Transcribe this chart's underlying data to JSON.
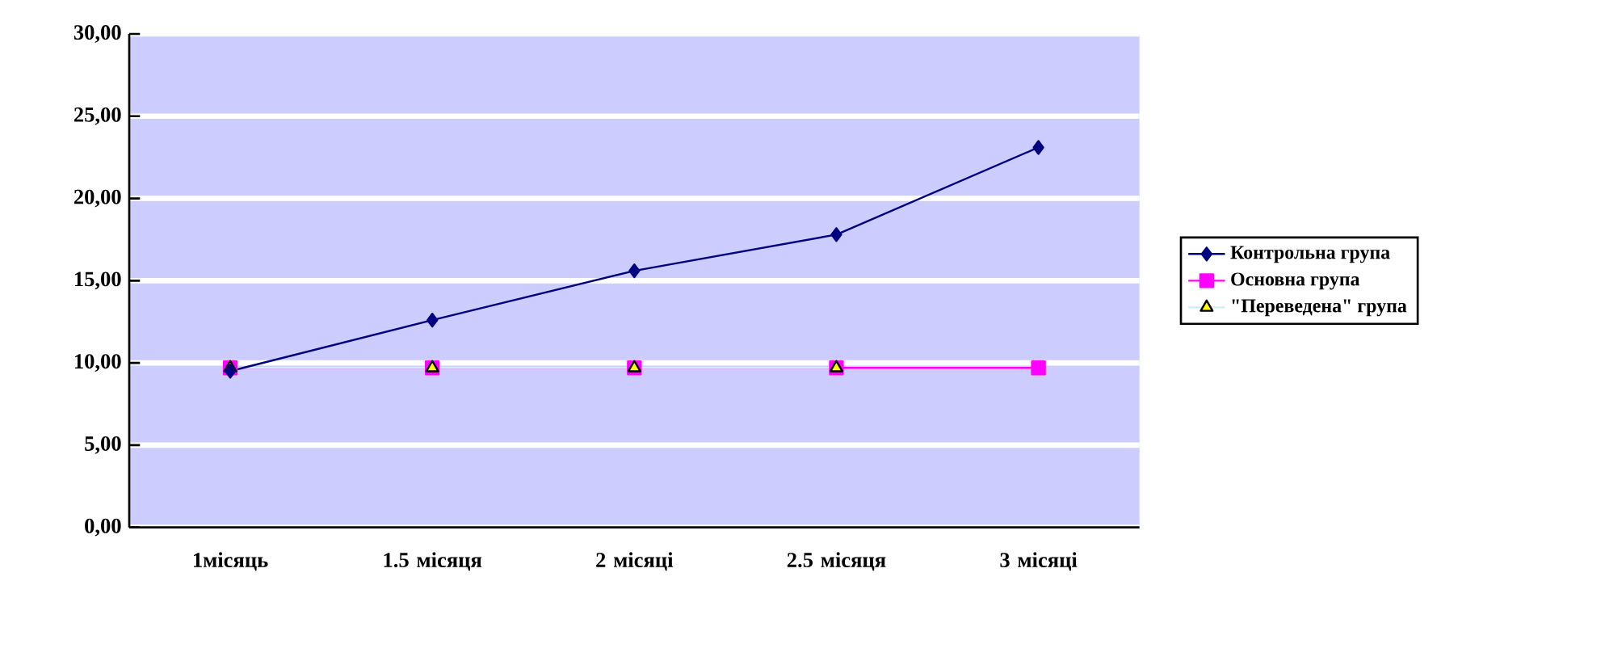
{
  "chart_data": {
    "type": "line",
    "categories": [
      "1місяць",
      "1.5 місяця",
      "2 місяці",
      "2.5 місяця",
      "3 місяці"
    ],
    "series": [
      {
        "name": "Контрольна група",
        "color": "#000080",
        "marker": "diamond",
        "values": [
          9.5,
          12.6,
          15.6,
          17.8,
          23.1
        ]
      },
      {
        "name": "Основна група",
        "color": "#ff00ff",
        "marker": "square",
        "values": [
          9.7,
          9.7,
          9.7,
          9.7,
          9.7
        ]
      },
      {
        "name": "\"Переведена\" група",
        "color": "#ffff00",
        "marker": "triangle",
        "values": [
          9.7,
          9.7,
          9.7,
          9.7,
          null
        ]
      }
    ],
    "ylim": [
      0,
      30
    ],
    "yticks": [
      {
        "value": 0,
        "label": "0,00"
      },
      {
        "value": 5,
        "label": "5,00"
      },
      {
        "value": 10,
        "label": "10,00"
      },
      {
        "value": 15,
        "label": "15,00"
      },
      {
        "value": 20,
        "label": "20,00"
      },
      {
        "value": 25,
        "label": "25,00"
      },
      {
        "value": 30,
        "label": "30,00"
      }
    ],
    "grid": "y",
    "legend": "right"
  }
}
